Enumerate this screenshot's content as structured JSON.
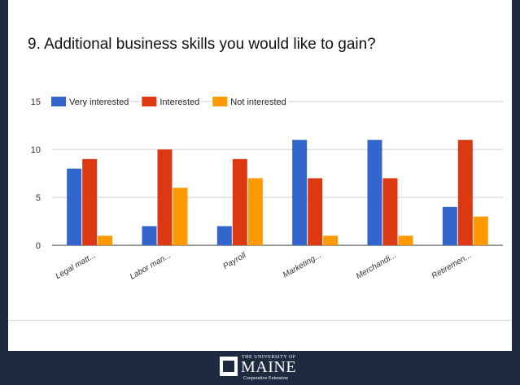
{
  "slide": {
    "title": "9. Additional business skills you would like to gain?"
  },
  "logo": {
    "top_text": "THE UNIVERSITY OF",
    "main_text": "MAINE",
    "sub_text": "Cooperative Extension"
  },
  "chart_data": {
    "type": "bar",
    "categories": [
      "Legal matt...",
      "Labor man...",
      "Payroll",
      "Marketing...",
      "Merchandi...",
      "Retiremen..."
    ],
    "series": [
      {
        "name": "Very interested",
        "color": "#3366cc",
        "values": [
          8,
          2,
          2,
          11,
          11,
          4
        ]
      },
      {
        "name": "Interested",
        "color": "#dc3912",
        "values": [
          9,
          10,
          9,
          7,
          7,
          11
        ]
      },
      {
        "name": "Not interested",
        "color": "#ff9900",
        "values": [
          1,
          6,
          7,
          1,
          1,
          3
        ]
      }
    ],
    "y_ticks": [
      "0",
      "5",
      "10",
      "15"
    ],
    "ylim": [
      0,
      15
    ],
    "grid": true,
    "legend": "top-left"
  }
}
